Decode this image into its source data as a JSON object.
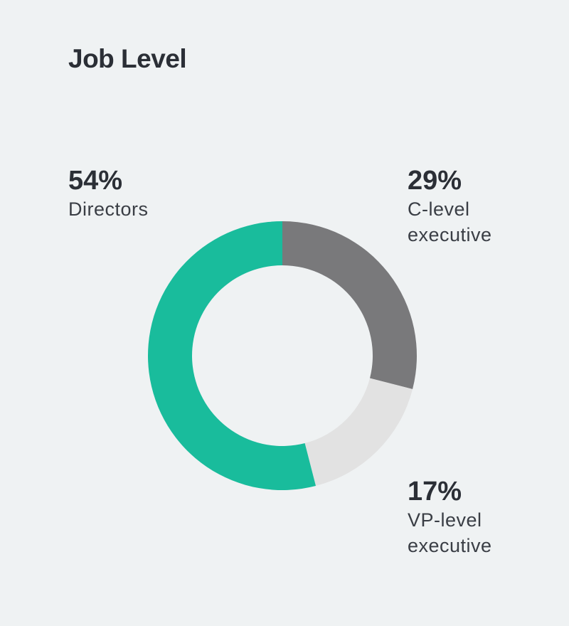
{
  "chart_data": {
    "type": "donut",
    "title": "Job Level",
    "categories": [
      "C-level executive",
      "VP-level executive",
      "Directors"
    ],
    "values": [
      29,
      17,
      54
    ],
    "value_labels": [
      "29%",
      "17%",
      "54%"
    ],
    "colors": [
      "#79797b",
      "#e2e2e2",
      "#19bc9c"
    ]
  }
}
